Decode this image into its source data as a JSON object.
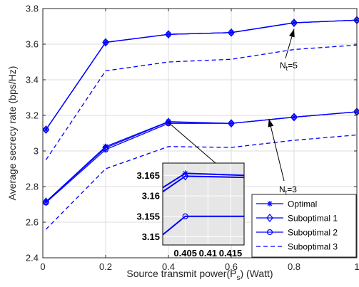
{
  "chart_data": {
    "type": "line",
    "xlabel_main": "Source transmit power(P",
    "xlabel_sub": "s",
    "xlabel_tail": ") (Watt)",
    "ylabel": "Average secrecy rate (bps/Hz)",
    "xlim": [
      0,
      1
    ],
    "ylim": [
      2.4,
      3.8
    ],
    "xticks": [
      "0",
      "0.2",
      "0.4",
      "0.6",
      "0.8",
      "1"
    ],
    "yticks": [
      "2.4",
      "2.6",
      "2.8",
      "3",
      "3.2",
      "3.4",
      "3.6",
      "3.8"
    ],
    "grid": true,
    "x": [
      0.01,
      0.2,
      0.4,
      0.6,
      0.8,
      1.0
    ],
    "series": [
      {
        "name": "Optimal",
        "marker": "asterisk",
        "style": "solid",
        "values": [
          3.12,
          3.61,
          3.655,
          3.665,
          3.72,
          3.735
        ],
        "group": "Nt=5"
      },
      {
        "name": "Suboptimal 1",
        "marker": "diamond",
        "style": "solid",
        "values": [
          3.12,
          3.61,
          3.655,
          3.665,
          3.72,
          3.735
        ],
        "group": "Nt=5"
      },
      {
        "name": "Suboptimal 2",
        "marker": "circle",
        "style": "solid",
        "values": [
          3.12,
          3.61,
          3.655,
          3.665,
          3.72,
          3.735
        ],
        "group": "Nt=5"
      },
      {
        "name": "Suboptimal 3",
        "marker": "none",
        "style": "dashed",
        "values": [
          2.95,
          3.45,
          3.5,
          3.515,
          3.57,
          3.595
        ],
        "group": "Nt=5"
      },
      {
        "name": "Optimal",
        "marker": "asterisk",
        "style": "solid",
        "values": [
          2.715,
          3.025,
          3.165,
          3.155,
          3.19,
          3.22
        ],
        "group": "Nt=3"
      },
      {
        "name": "Suboptimal 1",
        "marker": "diamond",
        "style": "solid",
        "values": [
          2.715,
          3.018,
          3.163,
          3.155,
          3.19,
          3.22
        ],
        "group": "Nt=3"
      },
      {
        "name": "Suboptimal 2",
        "marker": "circle",
        "style": "solid",
        "values": [
          2.71,
          3.008,
          3.155,
          3.155,
          3.19,
          3.22
        ],
        "group": "Nt=3"
      },
      {
        "name": "Suboptimal 3",
        "marker": "none",
        "style": "dashed",
        "values": [
          2.56,
          2.9,
          3.025,
          3.02,
          3.06,
          3.09
        ],
        "group": "Nt=3"
      }
    ],
    "legend": {
      "placement": "bottom-right",
      "entries": [
        {
          "label": "Optimal",
          "marker": "asterisk",
          "style": "solid"
        },
        {
          "label": "Suboptimal 1",
          "marker": "diamond",
          "style": "solid"
        },
        {
          "label": "Suboptimal 2",
          "marker": "circle",
          "style": "solid"
        },
        {
          "label": "Suboptimal 3",
          "marker": "none",
          "style": "dashed"
        }
      ]
    },
    "annotations": [
      {
        "text_main": "N",
        "text_sub": "t",
        "text_tail": "=5",
        "arrow_to": [
          0.8,
          3.685
        ]
      },
      {
        "text_main": "N",
        "text_sub": "t",
        "text_tail": "=3",
        "arrow_to": [
          0.72,
          3.18
        ]
      }
    ],
    "inset": {
      "xlim": [
        0.4,
        0.418
      ],
      "ylim": [
        3.148,
        3.168
      ],
      "xticks": [
        "0.405",
        "0.41",
        "0.415"
      ],
      "yticks": [
        "3.15",
        "3.155",
        "3.16",
        "3.165"
      ],
      "zoom_point": [
        0.4,
        3.16
      ],
      "lines": [
        {
          "marker": "asterisk",
          "x": [
            0.4,
            0.405,
            0.418
          ],
          "values": [
            3.162,
            3.1655,
            3.165
          ]
        },
        {
          "marker": "diamond",
          "x": [
            0.4,
            0.405,
            0.418
          ],
          "values": [
            3.161,
            3.1648,
            3.1645
          ]
        },
        {
          "marker": "circle",
          "x": [
            0.4,
            0.405,
            0.418
          ],
          "values": [
            3.1505,
            3.155,
            3.155
          ]
        }
      ]
    },
    "colors": {
      "series": "#0000ff",
      "axis": "#262626",
      "grid": "#dcdcdc",
      "inset_bg": "#e6e6e6"
    }
  }
}
